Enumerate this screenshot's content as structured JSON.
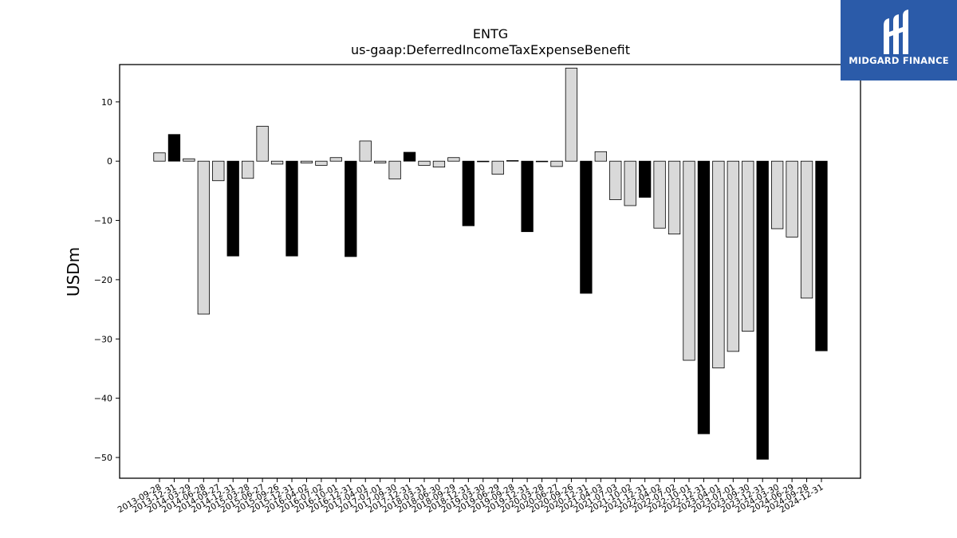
{
  "brand": {
    "name": "MIDGARD FINANCE"
  },
  "chart_data": {
    "type": "bar",
    "title": "ENTG",
    "subtitle": "us-gaap:DeferredIncomeTaxExpenseBenefit",
    "ylabel": "USDm",
    "xlabel": "",
    "ylim": [
      -53.5,
      16.3
    ],
    "yticks": [
      10,
      0,
      -10,
      -20,
      -30,
      -40,
      -50
    ],
    "grid": false,
    "colors": {
      "quarter": "#d9d9d9",
      "year_end": "#000000",
      "edge": "#000000"
    },
    "categories": [
      "2013-09-28",
      "2013-12-31",
      "2014-03-29",
      "2014-06-28",
      "2014-09-27",
      "2014-12-31",
      "2015-03-28",
      "2015-06-27",
      "2015-09-26",
      "2015-12-31",
      "2016-04-02",
      "2016-07-02",
      "2016-10-01",
      "2016-12-31",
      "2017-04-01",
      "2017-07-01",
      "2017-09-30",
      "2017-12-31",
      "2018-03-31",
      "2018-06-30",
      "2018-09-29",
      "2018-12-31",
      "2019-03-30",
      "2019-06-29",
      "2019-09-28",
      "2019-12-31",
      "2020-03-28",
      "2020-06-27",
      "2020-09-26",
      "2020-12-31",
      "2021-04-03",
      "2021-07-03",
      "2021-10-02",
      "2021-12-31",
      "2022-04-02",
      "2022-07-02",
      "2022-10-01",
      "2022-12-31",
      "2023-04-01",
      "2023-07-01",
      "2023-09-30",
      "2023-12-31",
      "2024-03-30",
      "2024-06-29",
      "2024-09-28",
      "2024-12-31"
    ],
    "values": [
      1.4,
      4.5,
      0.4,
      -25.8,
      -3.3,
      -16.0,
      -2.9,
      5.9,
      -0.5,
      -16.0,
      -0.3,
      -0.7,
      0.6,
      -16.1,
      3.4,
      -0.3,
      -3.0,
      1.5,
      -0.7,
      -1.0,
      0.6,
      -10.9,
      -0.1,
      -2.2,
      0.1,
      -11.9,
      -0.1,
      -0.9,
      15.7,
      -22.3,
      1.6,
      -6.5,
      -7.5,
      -6.1,
      -11.3,
      -12.3,
      -33.6,
      -46.0,
      -34.9,
      -32.1,
      -28.7,
      -50.3,
      -11.4,
      -12.8,
      -23.1,
      -32.0
    ],
    "year_end": [
      false,
      true,
      false,
      false,
      false,
      true,
      false,
      false,
      false,
      true,
      false,
      false,
      false,
      true,
      false,
      false,
      false,
      true,
      false,
      false,
      false,
      true,
      false,
      false,
      false,
      true,
      false,
      false,
      false,
      true,
      false,
      false,
      false,
      true,
      false,
      false,
      false,
      true,
      false,
      false,
      false,
      true,
      false,
      false,
      false,
      true
    ]
  }
}
